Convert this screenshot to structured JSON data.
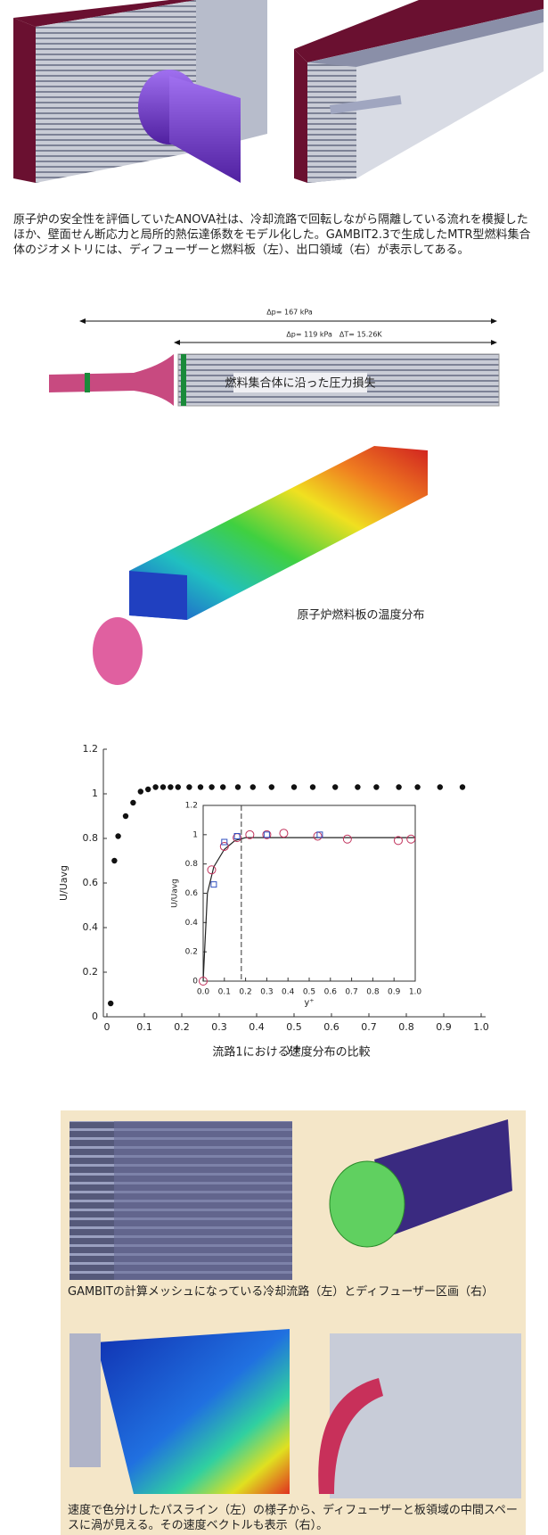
{
  "captions": {
    "top": "原子炉の安全性を評価していたANOVA社は、冷却流路で回転しながら隔離している流れを模擬したほか、壁面せん断応力と局所的熱伝達係数をモデル化した。GAMBIT2.3で生成したMTR型燃料集合体のジオメトリには、ディフューザーと燃料板（左）、出口領域（右）が表示してある。",
    "pressure_total": "Δp= 167 kPa",
    "pressure_core": "Δp= 119 kPa　ΔT= 15.26K",
    "pressure_label": "燃料集合体に沿った圧力損失",
    "temperature_label": "原子炉燃料板の温度分布",
    "chart": "流路1における速度分布の比較",
    "mesh": "GAMBITの計算メッシュになっている冷却流路（左）とディフューザー区画（右）",
    "pathline": "速度で色分けしたパスライン（左）の様子から、ディフューザーと板領域の中間スペースに渦が見える。その速度ベクトルも表示（右）。"
  },
  "chart_data": [
    {
      "type": "scatter",
      "xlabel": "y+",
      "ylabel": "U/Uavg",
      "xlim": [
        0,
        1
      ],
      "ylim": [
        0,
        1.2
      ],
      "xticks": [
        0,
        0.1,
        0.2,
        0.3,
        0.4,
        0.5,
        0.6,
        0.7,
        0.8,
        0.9,
        {
          "value": 1,
          "label": "1.0"
        }
      ],
      "yticks": [
        0,
        0.2,
        0.4,
        0.6,
        0.8,
        1,
        1.2
      ],
      "series": [
        {
          "color": "#111111",
          "marker": "dot",
          "x": [
            0.01,
            0.02,
            0.03,
            0.05,
            0.07,
            0.09,
            0.11,
            0.13,
            0.15,
            0.17,
            0.19,
            0.22,
            0.25,
            0.28,
            0.31,
            0.35,
            0.39,
            0.44,
            0.5,
            0.55,
            0.61,
            0.67,
            0.72,
            0.78,
            0.83,
            0.89,
            0.95
          ],
          "values": [
            0.06,
            0.7,
            0.81,
            0.9,
            0.96,
            1.01,
            1.02,
            1.03,
            1.03,
            1.03,
            1.03,
            1.03,
            1.03,
            1.03,
            1.03,
            1.03,
            1.03,
            1.03,
            1.03,
            1.03,
            1.03,
            1.03,
            1.03,
            1.03,
            1.03,
            1.03,
            1.03
          ]
        }
      ]
    },
    {
      "type": "scatter",
      "xlabel": "y⁺",
      "ylabel": "U/Uavg",
      "xlim": [
        0,
        1
      ],
      "ylim": [
        0,
        1.2
      ],
      "xticks": [
        {
          "value": 0,
          "label": "0.0"
        },
        0.1,
        0.2,
        0.3,
        0.4,
        0.5,
        0.6,
        0.7,
        0.8,
        0.9,
        {
          "value": 1,
          "label": "1.0"
        }
      ],
      "yticks": [
        0,
        0.2,
        0.4,
        0.6,
        0.8,
        1,
        1.2
      ],
      "vline": 0.18,
      "series": [
        {
          "color": "#222222",
          "marker": "line",
          "x": [
            0,
            0.02,
            0.05,
            0.1,
            0.15,
            0.2,
            0.3,
            0.5,
            0.7,
            1
          ],
          "values": [
            0,
            0.6,
            0.78,
            0.9,
            0.96,
            0.98,
            0.98,
            0.98,
            0.98,
            0.98
          ]
        },
        {
          "color": "#c0305a",
          "marker": "circle",
          "x": [
            0,
            0.04,
            0.1,
            0.16,
            0.22,
            0.3,
            0.38,
            0.54,
            0.68,
            0.92,
            0.98
          ],
          "values": [
            0,
            0.76,
            0.92,
            0.98,
            1,
            1,
            1.01,
            0.99,
            0.97,
            0.96,
            0.97
          ]
        },
        {
          "color": "#3050c0",
          "marker": "square",
          "x": [
            0.05,
            0.1,
            0.16,
            0.3,
            0.55
          ],
          "values": [
            0.66,
            0.95,
            0.99,
            1,
            1
          ]
        }
      ]
    }
  ]
}
